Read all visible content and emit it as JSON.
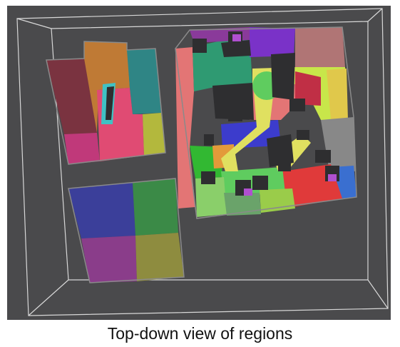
{
  "caption": "Top-down view of regions",
  "colors": {
    "background": "#4a4a4c",
    "wireframe": "#d8d8d8",
    "floor_outline": "#8a8a8a",
    "dark_furniture": "#2e2e30",
    "room_left_top": [
      "#7a3340",
      "#bf7a35",
      "#2f8585",
      "#c0397a",
      "#e04b73",
      "#b3b83d",
      "#3fc2c4"
    ],
    "room_left_bottom": [
      "#3b3f9a",
      "#3b8a47",
      "#8a3d8a",
      "#8e8c3f"
    ],
    "room_right": [
      "#8a3a9a",
      "#7a32c8",
      "#b07575",
      "#e37575",
      "#2f9a72",
      "#c8e64a",
      "#e0c84b",
      "#c02f45",
      "#3c3ccc",
      "#e0e060",
      "#32b832",
      "#888888",
      "#3a6fd0",
      "#e03a3a",
      "#9acc4a",
      "#6aa36a",
      "#5fcc5f",
      "#e39a3a",
      "#8acf6a",
      "#b050d0"
    ]
  }
}
